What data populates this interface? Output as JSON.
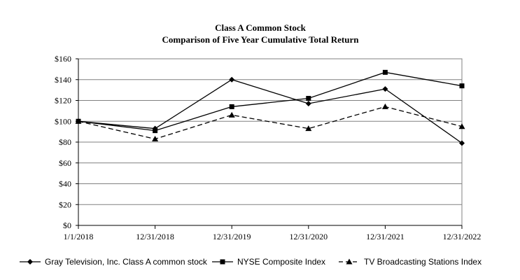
{
  "chart_data": {
    "type": "line",
    "title": "Class A Common Stock",
    "subtitle": "Comparison of Five Year Cumulative Total Return",
    "categories": [
      "1/1/2018",
      "12/31/2018",
      "12/31/2019",
      "12/31/2020",
      "12/31/2021",
      "12/31/2022"
    ],
    "ylim": [
      0,
      160
    ],
    "yticks": [
      0,
      20,
      40,
      60,
      80,
      100,
      120,
      140,
      160
    ],
    "ytick_labels": [
      "$0",
      "$20",
      "$40",
      "$60",
      "$80",
      "$100",
      "$120",
      "$140",
      "$160"
    ],
    "grid": true,
    "legend_position": "bottom",
    "series": [
      {
        "name": "Gray Television, Inc. Class A common stock",
        "marker": "diamond",
        "line": "solid",
        "values": [
          100,
          93,
          140,
          117,
          131,
          79
        ]
      },
      {
        "name": "NYSE Composite Index",
        "marker": "square",
        "line": "solid",
        "values": [
          100,
          91,
          114,
          122,
          147,
          134
        ]
      },
      {
        "name": "TV Broadcasting Stations Index",
        "marker": "triangle",
        "line": "dashed",
        "values": [
          100,
          83,
          106,
          93,
          114,
          95
        ]
      }
    ]
  }
}
